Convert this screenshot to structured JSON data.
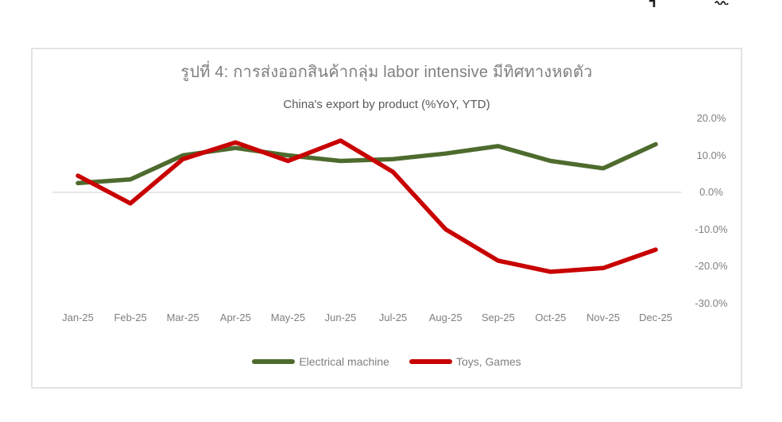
{
  "artifacts": {
    "description": "two tiny cropped glyph fragments along the top edge of the screenshot"
  },
  "chart_card": {
    "figure_title": "รูปที่ 4: การส่งออกสินค้ากลุ่ม labor intensive มีทิศทางหดตัว",
    "subtitle": "China's export by product (%YoY, YTD)"
  },
  "chart_data": {
    "type": "line",
    "title": "รูปที่ 4: การส่งออกสินค้ากลุ่ม labor intensive มีทิศทางหดตัว",
    "subtitle": "China's export by product (%YoY, YTD)",
    "categories": [
      "Jan-25",
      "Feb-25",
      "Mar-25",
      "Apr-25",
      "May-25",
      "Jun-25",
      "Jul-25",
      "Aug-25",
      "Sep-25",
      "Oct-25",
      "Nov-25",
      "Dec-25"
    ],
    "series": [
      {
        "name": "Electrical machine",
        "color": "#4e6b2e",
        "values": [
          2.5,
          3.5,
          10,
          12,
          10,
          8.5,
          9,
          10.5,
          12.5,
          8.5,
          6.5,
          13
        ]
      },
      {
        "name": "Toys, Games",
        "color": "#c80000",
        "values": [
          4.5,
          -3,
          9,
          13.5,
          8.5,
          14,
          5.5,
          -10,
          -18.5,
          -21.5,
          -20.5,
          -15.5
        ]
      }
    ],
    "ylim": [
      -30,
      20
    ],
    "ytick_labels": [
      "20.0%",
      "10.0%",
      "0.0%",
      "-10.0%",
      "-20.0%",
      "-30.0%"
    ],
    "ytick_values": [
      20,
      10,
      0,
      -10,
      -20,
      -30
    ],
    "y_axis_side": "right",
    "legend_position": "bottom",
    "grid": "zero-line-only",
    "zero_line_color": "#d9d9d9",
    "axis_label_color": "#7f7f7f",
    "title_color": "#7f7f7f",
    "subtitle_color": "#595959",
    "line_width": 5.5
  }
}
